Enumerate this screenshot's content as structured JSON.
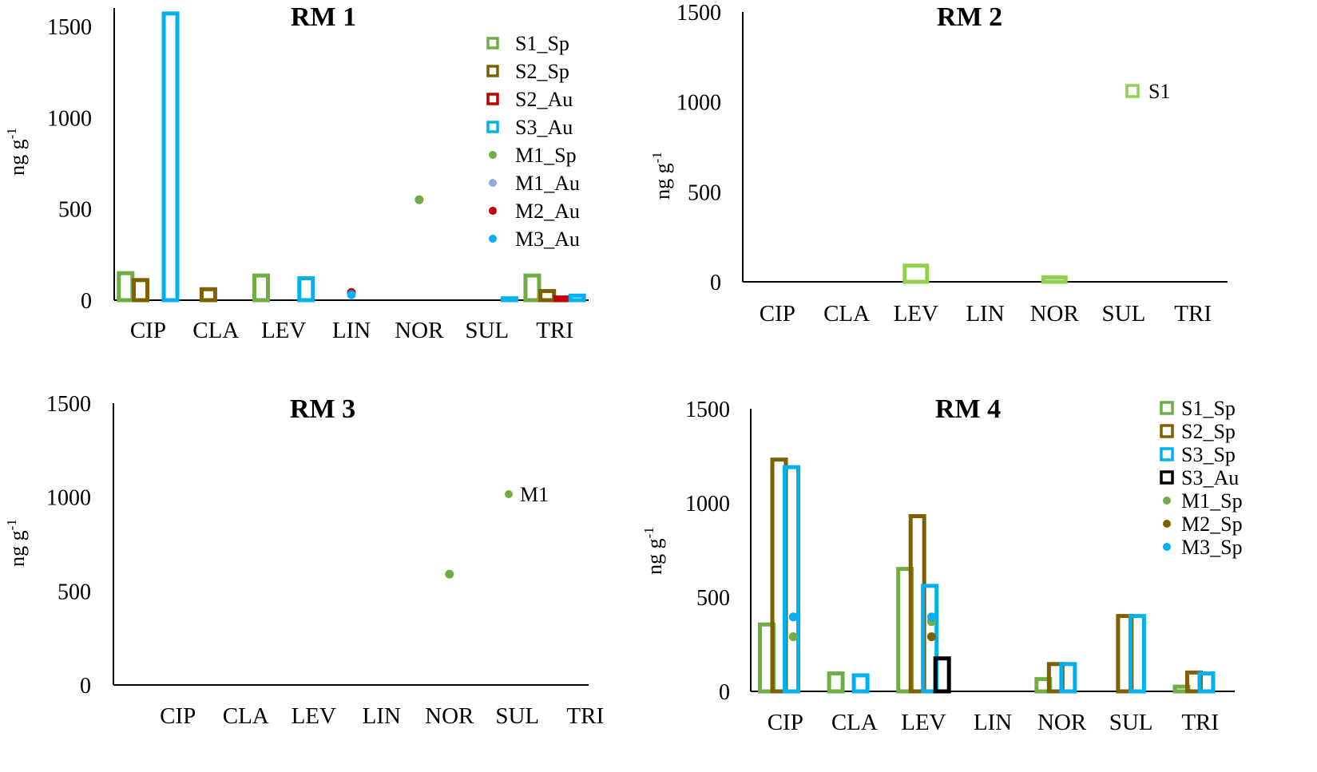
{
  "chart_data": [
    {
      "type": "bar",
      "title": "RM 1",
      "ylabel": "ng g",
      "ylabel_sup": "-1",
      "ylim": [
        0,
        1600
      ],
      "yticks": [
        "0",
        "500",
        "1000",
        "1500"
      ],
      "categories": [
        "CIP",
        "CLA",
        "LEV",
        "LIN",
        "NOR",
        "SUL",
        "TRI"
      ],
      "series": [
        {
          "name": "S1_Sp",
          "kind": "bar",
          "color": "#70ad47",
          "values": [
            148,
            null,
            135,
            null,
            null,
            null,
            135
          ]
        },
        {
          "name": "S2_Sp",
          "kind": "bar",
          "color": "#7f6000",
          "values": [
            110,
            60,
            null,
            null,
            null,
            null,
            50
          ]
        },
        {
          "name": "S2_Au",
          "kind": "bar",
          "color": "#c00000",
          "values": [
            null,
            null,
            null,
            null,
            null,
            null,
            15
          ]
        },
        {
          "name": "S3_Au",
          "kind": "bar",
          "color": "#00b0f0",
          "values": [
            1570,
            null,
            120,
            null,
            null,
            10,
            25
          ]
        },
        {
          "name": "M1_Sp",
          "kind": "point",
          "color": "#70ad47",
          "values": [
            null,
            null,
            null,
            null,
            550,
            null,
            null
          ]
        },
        {
          "name": "M1_Au",
          "kind": "point",
          "color": "#8faadc",
          "values": [
            null,
            null,
            null,
            null,
            null,
            null,
            null
          ]
        },
        {
          "name": "M2_Au",
          "kind": "point",
          "color": "#c00000",
          "values": [
            null,
            null,
            null,
            42,
            null,
            null,
            null
          ]
        },
        {
          "name": "M3_Au",
          "kind": "point",
          "color": "#00b0f0",
          "values": [
            null,
            null,
            null,
            30,
            null,
            null,
            null
          ]
        }
      ],
      "legend_position": "top-right"
    },
    {
      "type": "bar",
      "title": "RM 2",
      "ylabel": "ng g",
      "ylabel_sup": "-1",
      "ylim": [
        0,
        1500
      ],
      "yticks": [
        "0",
        "500",
        "1000",
        "1500"
      ],
      "categories": [
        "CIP",
        "CLA",
        "LEV",
        "LIN",
        "NOR",
        "SUL",
        "TRI"
      ],
      "series": [
        {
          "name": "S1",
          "kind": "bar",
          "color": "#92d050",
          "values": [
            null,
            null,
            90,
            null,
            25,
            null,
            null
          ]
        }
      ],
      "legend_position": "top-right"
    },
    {
      "type": "scatter",
      "title": "RM 3",
      "ylabel": "ng g",
      "ylabel_sup": "-1",
      "ylim": [
        0,
        1500
      ],
      "yticks": [
        "0",
        "500",
        "1000",
        "1500"
      ],
      "categories": [
        "CIP",
        "CLA",
        "LEV",
        "LIN",
        "NOR",
        "SUL",
        "TRI"
      ],
      "series": [
        {
          "name": "M1",
          "kind": "point",
          "color": "#70ad47",
          "values": [
            null,
            null,
            null,
            null,
            590,
            null,
            null
          ]
        }
      ],
      "legend_position": "top-right"
    },
    {
      "type": "bar",
      "title": "RM 4",
      "ylabel": "ng g",
      "ylabel_sup": "-1",
      "ylim": [
        0,
        1500
      ],
      "yticks": [
        "0",
        "500",
        "1000",
        "1500"
      ],
      "categories": [
        "CIP",
        "CLA",
        "LEV",
        "LIN",
        "NOR",
        "SUL",
        "TRI"
      ],
      "series": [
        {
          "name": "S1_Sp",
          "kind": "bar",
          "color": "#70ad47",
          "values": [
            355,
            95,
            650,
            null,
            65,
            null,
            25
          ]
        },
        {
          "name": "S2_Sp",
          "kind": "bar",
          "color": "#7f6000",
          "values": [
            1230,
            null,
            930,
            null,
            145,
            400,
            100
          ]
        },
        {
          "name": "S3_Sp",
          "kind": "bar",
          "color": "#00b0f0",
          "values": [
            1190,
            85,
            560,
            null,
            145,
            400,
            95
          ]
        },
        {
          "name": "S3_Au",
          "kind": "bar",
          "color": "#000000",
          "values": [
            null,
            null,
            175,
            null,
            null,
            null,
            null
          ]
        },
        {
          "name": "M1_Sp",
          "kind": "point",
          "color": "#70ad47",
          "values": [
            290,
            null,
            370,
            null,
            null,
            null,
            null
          ]
        },
        {
          "name": "M2_Sp",
          "kind": "point",
          "color": "#7f6000",
          "values": [
            null,
            null,
            290,
            null,
            null,
            null,
            null
          ]
        },
        {
          "name": "M3_Sp",
          "kind": "point",
          "color": "#00b0f0",
          "values": [
            395,
            null,
            395,
            null,
            null,
            null,
            null
          ]
        }
      ],
      "legend_position": "top-right"
    }
  ]
}
